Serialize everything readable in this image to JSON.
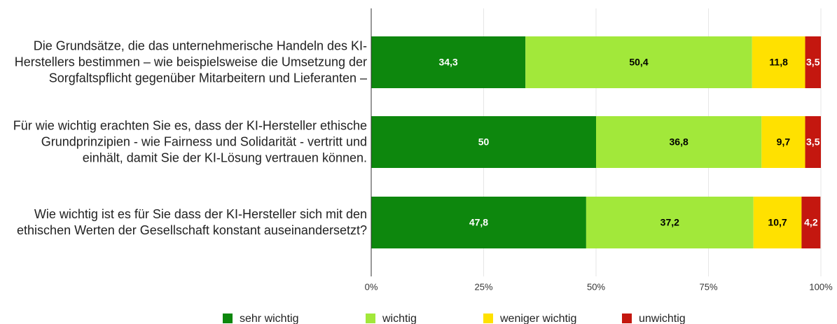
{
  "chart_data": {
    "type": "stacked_bar_horizontal",
    "categories": [
      "Die Grundsätze, die das unternehmerische Handeln des KI-Herstellers bestimmen – wie beispielsweise die Umsetzung der Sorgfaltspflicht gegenüber Mitarbeitern und Lieferanten –",
      "Für wie wichtig erachten Sie es, dass der KI-Hersteller ethische Grundprinzipien - wie Fairness und Solidarität - vertritt und einhält, damit Sie der KI-Lösung vertrauen können.",
      "Wie wichtig ist es für Sie dass der KI-Hersteller sich mit den ethischen Werten der Gesellschaft konstant auseinandersetzt?"
    ],
    "series": [
      {
        "name": "sehr wichtig",
        "color": "#0d870d",
        "label_color": "#ffffff",
        "values": [
          34.3,
          50,
          47.8
        ],
        "value_labels": [
          "34,3",
          "50",
          "47,8"
        ]
      },
      {
        "name": "wichtig",
        "color": "#a2e83a",
        "label_color": "#000000",
        "values": [
          50.4,
          36.8,
          37.2
        ],
        "value_labels": [
          "50,4",
          "36,8",
          "37,2"
        ]
      },
      {
        "name": "weniger wichtig",
        "color": "#ffe100",
        "label_color": "#000000",
        "values": [
          11.8,
          9.7,
          10.7
        ],
        "value_labels": [
          "11,8",
          "9,7",
          "10,7"
        ]
      },
      {
        "name": "unwichtig",
        "color": "#c4170f",
        "label_color": "#ffffff",
        "values": [
          3.5,
          3.5,
          4.2
        ],
        "value_labels": [
          "3,5",
          "3,5",
          "4,2"
        ]
      }
    ],
    "xlim": [
      0,
      100
    ],
    "xticks": [
      {
        "value": 0,
        "label": "0%"
      },
      {
        "value": 25,
        "label": "25%"
      },
      {
        "value": 50,
        "label": "50%"
      },
      {
        "value": 75,
        "label": "75%"
      },
      {
        "value": 100,
        "label": "100%"
      }
    ],
    "grid": true
  }
}
